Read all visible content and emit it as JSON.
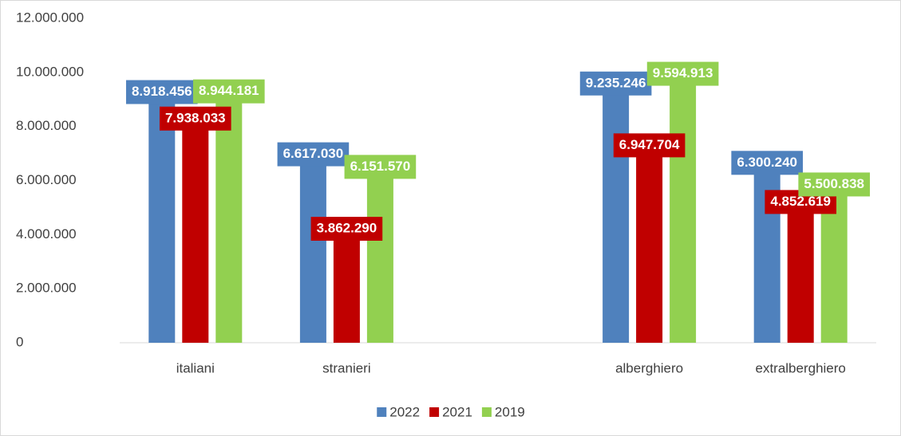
{
  "chart_data": {
    "type": "bar",
    "categories": [
      "italiani",
      "stranieri",
      null,
      "alberghiero",
      "extralberghiero"
    ],
    "series": [
      {
        "name": "2022",
        "color": "#4f81bd",
        "values": [
          8918456,
          6617030,
          null,
          9235246,
          6300240
        ],
        "value_labels": [
          "8.918.456",
          "6.617.030",
          null,
          "9.235.246",
          "6.300.240"
        ]
      },
      {
        "name": "2021",
        "color": "#c00000",
        "values": [
          7938033,
          3862290,
          null,
          6947704,
          4852619
        ],
        "value_labels": [
          "7.938.033",
          "3.862.290",
          null,
          "6.947.704",
          "4.852.619"
        ]
      },
      {
        "name": "2019",
        "color": "#92d050",
        "values": [
          8944181,
          6151570,
          null,
          9594913,
          5500838
        ],
        "value_labels": [
          "8.944.181",
          "6.151.570",
          null,
          "9.594.913",
          "5.500.838"
        ]
      }
    ],
    "ylim": [
      0,
      12000000
    ],
    "yticks": [
      {
        "value": 0,
        "label": "0"
      },
      {
        "value": 2000000,
        "label": "2.000.000"
      },
      {
        "value": 4000000,
        "label": "4.000.000"
      },
      {
        "value": 6000000,
        "label": "6.000.000"
      },
      {
        "value": 8000000,
        "label": "8.000.000"
      },
      {
        "value": 10000000,
        "label": "10.000.000"
      },
      {
        "value": 12000000,
        "label": "12.000.000"
      }
    ],
    "grid": false,
    "legend": "bottom"
  }
}
